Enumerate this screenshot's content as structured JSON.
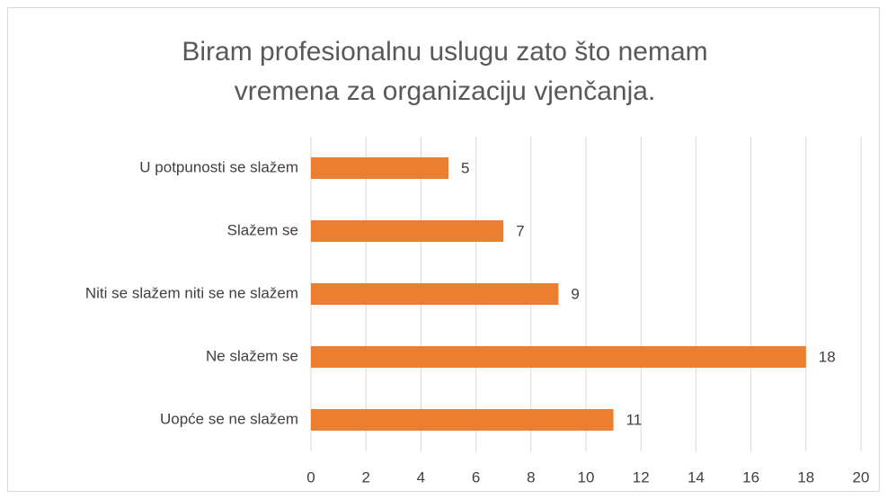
{
  "chart_data": {
    "type": "bar",
    "orientation": "horizontal",
    "title": "Biram profesionalnu uslugu zato što nemam vremena za organizaciju vjenčanja.",
    "categories": [
      "U potpunosti se slažem",
      "Slažem se",
      "Niti se slažem niti se ne slažem",
      "Ne slažem se",
      "Uopće se ne slažem"
    ],
    "values": [
      5,
      7,
      9,
      18,
      11
    ],
    "color": "#ed7d31",
    "xlim": [
      0,
      20
    ],
    "xticks": [
      0,
      2,
      4,
      6,
      8,
      10,
      12,
      14,
      16,
      18,
      20
    ],
    "grid": true
  }
}
